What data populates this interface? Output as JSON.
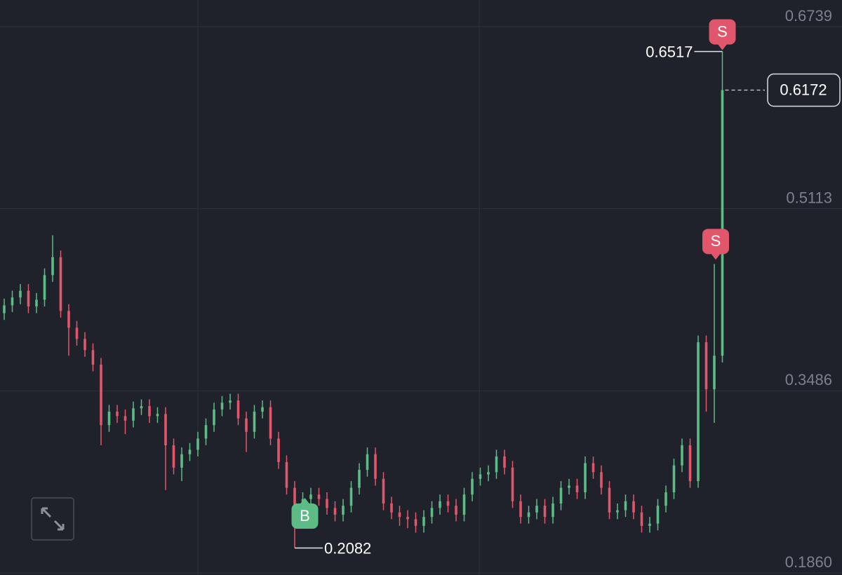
{
  "chart_data": {
    "type": "candlestick",
    "ylim": [
      0.186,
      0.6739
    ],
    "yticks": [
      {
        "value": 0.186,
        "label": "0.1860"
      },
      0.3486,
      0.5113,
      0.6739
    ],
    "grid": true,
    "up_color": "#5dbb86",
    "down_color": "#e2566b",
    "buy_marker": "B",
    "sell_markers": [
      "S",
      "S"
    ],
    "open": [
      0.418,
      0.425,
      0.432,
      0.438,
      0.424,
      0.43,
      0.452,
      0.468,
      0.42,
      0.405,
      0.395,
      0.385,
      0.372,
      0.318,
      0.33,
      0.326,
      0.322,
      0.333,
      0.335,
      0.326,
      0.328,
      0.3,
      0.28,
      0.292,
      0.296,
      0.306,
      0.318,
      0.332,
      0.338,
      0.34,
      0.324,
      0.312,
      0.33,
      0.334,
      0.306,
      0.285,
      0.262,
      0.232,
      0.252,
      0.256,
      0.252,
      0.244,
      0.238,
      0.246,
      0.262,
      0.278,
      0.292,
      0.27,
      0.248,
      0.24,
      0.236,
      0.234,
      0.228,
      0.236,
      0.244,
      0.25,
      0.246,
      0.238,
      0.256,
      0.27,
      0.274,
      0.276,
      0.29,
      0.28,
      0.25,
      0.236,
      0.24,
      0.246,
      0.236,
      0.248,
      0.262,
      0.264,
      0.258,
      0.284,
      0.276,
      0.262,
      0.24,
      0.242,
      0.25,
      0.24,
      0.228,
      0.23,
      0.246,
      0.258,
      0.282,
      0.3,
      0.268,
      0.392,
      0.35,
      0.38
    ],
    "high": [
      0.431,
      0.438,
      0.444,
      0.444,
      0.436,
      0.458,
      0.4876,
      0.474,
      0.426,
      0.411,
      0.401,
      0.391,
      0.378,
      0.336,
      0.336,
      0.332,
      0.339,
      0.341,
      0.341,
      0.334,
      0.334,
      0.306,
      0.298,
      0.302,
      0.312,
      0.324,
      0.338,
      0.344,
      0.346,
      0.346,
      0.33,
      0.336,
      0.34,
      0.34,
      0.312,
      0.291,
      0.268,
      0.258,
      0.262,
      0.262,
      0.258,
      0.25,
      0.252,
      0.268,
      0.284,
      0.298,
      0.298,
      0.276,
      0.254,
      0.246,
      0.242,
      0.24,
      0.242,
      0.25,
      0.256,
      0.256,
      0.252,
      0.262,
      0.276,
      0.28,
      0.282,
      0.296,
      0.296,
      0.286,
      0.256,
      0.246,
      0.252,
      0.252,
      0.254,
      0.268,
      0.27,
      0.27,
      0.29,
      0.29,
      0.282,
      0.268,
      0.248,
      0.256,
      0.256,
      0.246,
      0.236,
      0.252,
      0.264,
      0.288,
      0.306,
      0.306,
      0.398,
      0.398,
      0.462,
      0.6517
    ],
    "low": [
      0.412,
      0.419,
      0.426,
      0.418,
      0.418,
      0.424,
      0.446,
      0.414,
      0.38,
      0.389,
      0.379,
      0.366,
      0.3,
      0.312,
      0.32,
      0.31,
      0.316,
      0.327,
      0.32,
      0.32,
      0.26,
      0.274,
      0.268,
      0.286,
      0.29,
      0.3,
      0.312,
      0.326,
      0.332,
      0.318,
      0.294,
      0.306,
      0.324,
      0.3,
      0.279,
      0.256,
      0.2082,
      0.226,
      0.246,
      0.246,
      0.238,
      0.232,
      0.232,
      0.24,
      0.256,
      0.272,
      0.264,
      0.242,
      0.234,
      0.228,
      0.226,
      0.222,
      0.222,
      0.23,
      0.238,
      0.24,
      0.232,
      0.232,
      0.25,
      0.264,
      0.268,
      0.27,
      0.274,
      0.244,
      0.23,
      0.23,
      0.234,
      0.23,
      0.23,
      0.242,
      0.256,
      0.252,
      0.252,
      0.27,
      0.256,
      0.234,
      0.234,
      0.236,
      0.234,
      0.222,
      0.222,
      0.224,
      0.24,
      0.252,
      0.276,
      0.262,
      0.262,
      0.33,
      0.32,
      0.374
    ],
    "close": [
      0.425,
      0.432,
      0.438,
      0.424,
      0.43,
      0.452,
      0.468,
      0.42,
      0.405,
      0.395,
      0.385,
      0.372,
      0.318,
      0.33,
      0.326,
      0.322,
      0.333,
      0.335,
      0.326,
      0.328,
      0.3,
      0.28,
      0.292,
      0.296,
      0.306,
      0.318,
      0.332,
      0.338,
      0.34,
      0.324,
      0.312,
      0.33,
      0.334,
      0.306,
      0.285,
      0.262,
      0.232,
      0.252,
      0.256,
      0.252,
      0.244,
      0.238,
      0.246,
      0.262,
      0.278,
      0.292,
      0.27,
      0.248,
      0.24,
      0.236,
      0.234,
      0.228,
      0.236,
      0.244,
      0.25,
      0.246,
      0.238,
      0.256,
      0.27,
      0.274,
      0.276,
      0.29,
      0.28,
      0.25,
      0.236,
      0.24,
      0.246,
      0.236,
      0.248,
      0.262,
      0.264,
      0.258,
      0.284,
      0.276,
      0.262,
      0.24,
      0.242,
      0.25,
      0.24,
      0.228,
      0.23,
      0.246,
      0.258,
      0.282,
      0.3,
      0.268,
      0.392,
      0.35,
      0.38,
      0.6172
    ]
  }
}
